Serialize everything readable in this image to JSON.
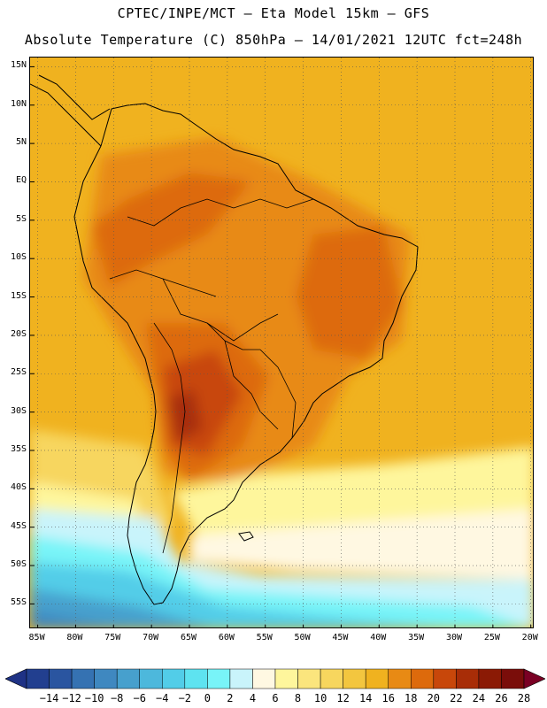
{
  "header": {
    "line1": "CPTEC/INPE/MCT –  Eta Model 15km – GFS",
    "line2": "Absolute Temperature (C) 850hPa – 14/01/2021 12UTC fct=248h"
  },
  "map": {
    "lat_labels": [
      "15N",
      "10N",
      "5N",
      "EQ",
      "5S",
      "10S",
      "15S",
      "20S",
      "25S",
      "30S",
      "35S",
      "40S",
      "45S",
      "50S",
      "55S"
    ],
    "lat_values": [
      15,
      10,
      5,
      0,
      -5,
      -10,
      -15,
      -20,
      -25,
      -30,
      -35,
      -40,
      -45,
      -50,
      -55
    ],
    "lon_labels": [
      "85W",
      "80W",
      "75W",
      "70W",
      "65W",
      "60W",
      "55W",
      "50W",
      "45W",
      "40W",
      "35W",
      "30W",
      "25W",
      "20W"
    ],
    "lon_values": [
      -85,
      -80,
      -75,
      -70,
      -65,
      -60,
      -55,
      -50,
      -45,
      -40,
      -35,
      -30,
      -25,
      -20
    ],
    "extent": {
      "lon_min": -86,
      "lon_max": -19.5,
      "lat_max": 16.2,
      "lat_min": -58.3
    },
    "ocean_color": "#f0b21f"
  },
  "colorbar": {
    "labels": [
      "-14",
      "-12",
      "-10",
      "-8",
      "-6",
      "-4",
      "-2",
      "0",
      "2",
      "4",
      "6",
      "8",
      "10",
      "12",
      "14",
      "16",
      "18",
      "20",
      "22",
      "24",
      "26",
      "28"
    ],
    "colors": [
      "#223f8f",
      "#2a55a0",
      "#3572b2",
      "#3f88c0",
      "#47a0cd",
      "#4db8dc",
      "#52cde8",
      "#5ee3f0",
      "#78f4f8",
      "#c9f4fb",
      "#fff8e2",
      "#fef69c",
      "#fbe57d",
      "#f7d65e",
      "#f3c63f",
      "#f0b21f",
      "#e88a14",
      "#dd6a0c",
      "#c8470a",
      "#a82d07",
      "#8b1a05",
      "#7a0d0a"
    ],
    "under_color": "#1f3285",
    "over_color": "#7a0024"
  }
}
